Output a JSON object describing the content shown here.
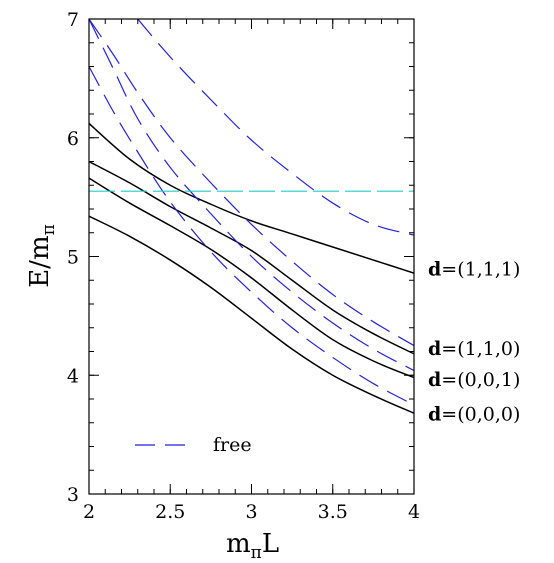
{
  "chart_data": {
    "type": "line",
    "title": "",
    "xlabel_base": "m",
    "xlabel_sub": "π",
    "xlabel_tail": "L",
    "ylabel_base": "E/m",
    "ylabel_sub": "π",
    "xlim": [
      2,
      4
    ],
    "ylim": [
      3,
      7
    ],
    "xticks": [
      "2",
      "2.5",
      "3",
      "3.5",
      "4"
    ],
    "yticks": [
      "3",
      "4",
      "5",
      "6",
      "7"
    ],
    "grid": false,
    "legend": {
      "position": "bottom-left",
      "entries": [
        {
          "label": "free",
          "style": "dashed",
          "color": "#2222dd"
        }
      ]
    },
    "colors": {
      "interacting": "#000000",
      "free": "#2222dd",
      "threshold": "#22cccc"
    },
    "labels": [
      {
        "bold": "d",
        "text": "=(1,1,1)",
        "at_y": 4.9
      },
      {
        "bold": "d",
        "text": "=(1,1,0)",
        "at_y": 4.23
      },
      {
        "bold": "d",
        "text": "=(0,0,1)",
        "at_y": 3.97
      },
      {
        "bold": "d",
        "text": "=(0,0,0)",
        "at_y": 3.68
      }
    ],
    "series": [
      {
        "kind": "interacting",
        "x": [
          2.0,
          2.25,
          2.5,
          2.75,
          3.0,
          3.25,
          3.5,
          3.75,
          4.0
        ],
        "y": [
          6.12,
          5.82,
          5.6,
          5.44,
          5.3,
          5.19,
          5.08,
          4.97,
          4.86
        ]
      },
      {
        "kind": "interacting",
        "x": [
          2.0,
          2.25,
          2.5,
          2.75,
          3.0,
          3.25,
          3.5,
          3.75,
          4.0
        ],
        "y": [
          5.8,
          5.62,
          5.42,
          5.24,
          5.05,
          4.8,
          4.55,
          4.35,
          4.18
        ]
      },
      {
        "kind": "interacting",
        "x": [
          2.0,
          2.25,
          2.5,
          2.75,
          3.0,
          3.25,
          3.5,
          3.75,
          4.0
        ],
        "y": [
          5.66,
          5.45,
          5.26,
          5.06,
          4.82,
          4.55,
          4.3,
          4.12,
          3.98
        ]
      },
      {
        "kind": "interacting",
        "x": [
          2.0,
          2.25,
          2.5,
          2.75,
          3.0,
          3.25,
          3.5,
          3.75,
          4.0
        ],
        "y": [
          5.34,
          5.17,
          4.97,
          4.74,
          4.48,
          4.22,
          4.0,
          3.83,
          3.68
        ]
      },
      {
        "kind": "free",
        "x": [
          2.3,
          2.5,
          2.75,
          3.0,
          3.25,
          3.5,
          3.75,
          4.0
        ],
        "y": [
          7.0,
          6.68,
          6.32,
          5.98,
          5.7,
          5.45,
          5.27,
          5.18
        ]
      },
      {
        "kind": "free",
        "x": [
          2.0,
          2.15,
          2.3,
          2.5,
          2.75,
          3.0,
          3.25,
          3.5,
          3.75,
          4.0
        ],
        "y": [
          7.0,
          6.7,
          6.38,
          6.0,
          5.62,
          5.27,
          4.96,
          4.68,
          4.45,
          4.25
        ]
      },
      {
        "kind": "free",
        "x": [
          2.0,
          2.15,
          2.3,
          2.5,
          2.75,
          3.0,
          3.25,
          3.5,
          3.75,
          4.0
        ],
        "y": [
          7.0,
          6.58,
          6.16,
          5.75,
          5.36,
          5.0,
          4.7,
          4.44,
          4.22,
          4.04
        ]
      },
      {
        "kind": "free",
        "x": [
          2.0,
          2.15,
          2.3,
          2.5,
          2.75,
          3.0,
          3.25,
          3.5,
          3.75,
          4.0
        ],
        "y": [
          6.6,
          6.22,
          5.88,
          5.46,
          5.04,
          4.7,
          4.4,
          4.15,
          3.93,
          3.75
        ]
      },
      {
        "kind": "threshold",
        "x": [
          2.0,
          4.0
        ],
        "y": [
          5.55,
          5.55
        ]
      }
    ]
  }
}
